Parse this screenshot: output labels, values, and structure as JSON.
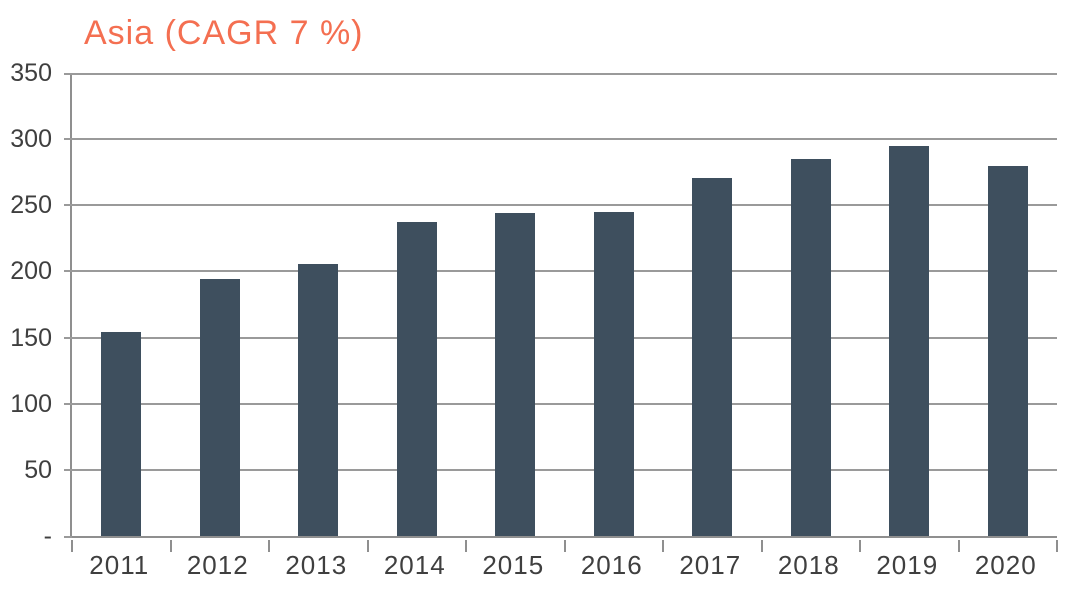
{
  "chart_data": {
    "type": "bar",
    "title": "Asia (CAGR 7 %)",
    "categories": [
      "2011",
      "2012",
      "2013",
      "2014",
      "2015",
      "2016",
      "2017",
      "2018",
      "2019",
      "2020"
    ],
    "values": [
      154,
      194,
      206,
      237,
      244,
      245,
      271,
      285,
      295,
      280
    ],
    "xlabel": "",
    "ylabel": "",
    "ylim": [
      0,
      350
    ],
    "ytick_interval": 50,
    "ytick_labels": [
      "-",
      "50",
      "100",
      "150",
      "200",
      "250",
      "300",
      "350"
    ],
    "grid": true,
    "legend_position": "none",
    "colors": {
      "bar": "#3e4f5e",
      "gridline": "#9a9a9a",
      "axis": "#8f8f8f",
      "tick_label": "#3f3f3f",
      "title": "#f46f51"
    }
  }
}
